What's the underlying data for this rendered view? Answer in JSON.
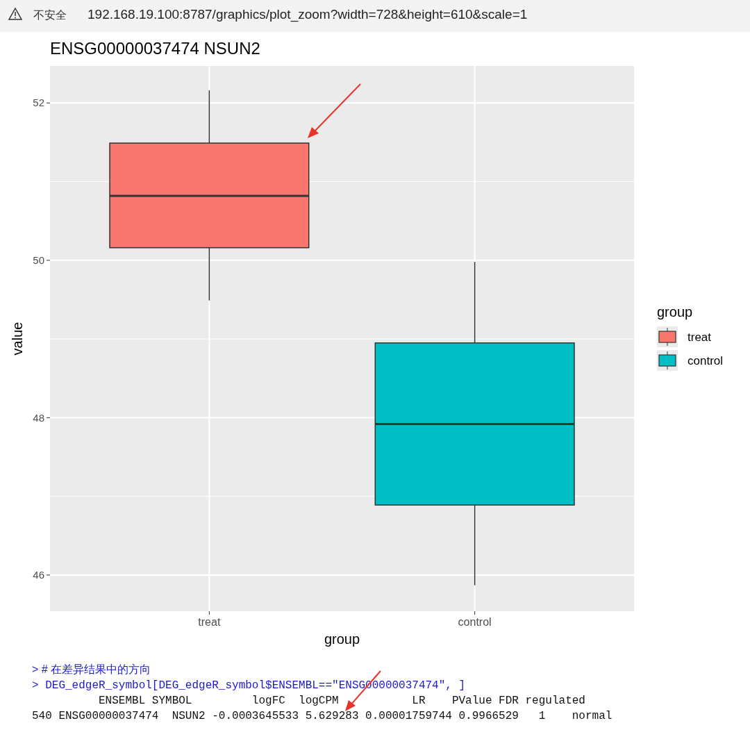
{
  "chart_data": {
    "type": "box",
    "title": "ENSG00000037474 NSUN2",
    "xlabel": "group",
    "ylabel": "value",
    "legend_title": "group",
    "categories": [
      "treat",
      "control"
    ],
    "series": [
      {
        "name": "treat",
        "color": "#f8766d",
        "boxes": [
          {
            "low": 49.49,
            "q1": 50.16,
            "median": 50.82,
            "q3": 51.49,
            "high": 52.16
          },
          null
        ]
      },
      {
        "name": "control",
        "color": "#00bfc4",
        "boxes": [
          null,
          {
            "low": 45.87,
            "q1": 46.89,
            "median": 47.92,
            "q3": 48.95,
            "high": 49.98
          }
        ]
      }
    ],
    "ylim": [
      45.54,
      52.47
    ],
    "yticks": [
      46,
      48,
      50,
      52
    ],
    "grid": true,
    "legend": "right",
    "annotations": [
      "不安全",
      "192.168.19.100:8787/graphics/plot_zoom?width=728&height=610&scale=1",
      "> # 在差异结果中的方向",
      "> DEG_edgeR_symbol[DEG_edgeR_symbol$ENSEMBL==\"ENSG00000037474\", ]",
      "          ENSEMBL SYMBOL         logFC  logCPM           LR    PValue FDR regulated",
      "540 ENSG00000037474  NSUN2 -0.0003645533 5.629283 0.00001759744 0.9966529   1    normal"
    ]
  }
}
